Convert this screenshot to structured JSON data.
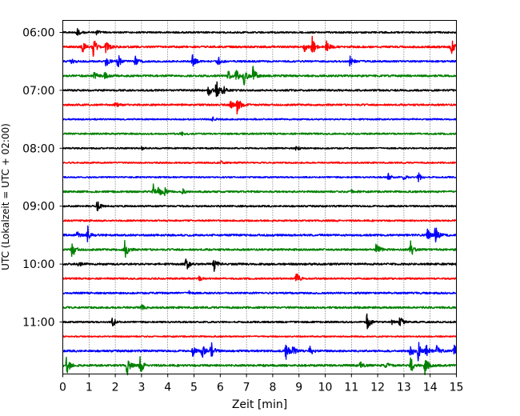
{
  "chart_data": {
    "type": "line",
    "xlabel": "Zeit  [min]",
    "ylabel": "UTC (Lokalzeit = UTC + 02:00)",
    "xlim": [
      0,
      15
    ],
    "x_ticks": [
      0,
      1,
      2,
      3,
      4,
      5,
      6,
      7,
      8,
      9,
      10,
      11,
      12,
      13,
      14,
      15
    ],
    "grid": "vertical-dotted",
    "trace_interval_min": 15,
    "y_time_range": [
      "06:00",
      "11:45"
    ],
    "y_tick_labels": [
      "06:00",
      "07:00",
      "08:00",
      "09:00",
      "10:00",
      "11:00"
    ],
    "colors": [
      "#000000",
      "#ff0000",
      "#0000ff",
      "#008000"
    ],
    "traces": [
      {
        "start": "06:00",
        "color_index": 0,
        "noise": 1.0,
        "events": [
          [
            0.55,
            6
          ],
          [
            1.3,
            3
          ]
        ]
      },
      {
        "start": "06:15",
        "color_index": 1,
        "noise": 1.2,
        "events": [
          [
            0.75,
            7
          ],
          [
            1.15,
            14
          ],
          [
            1.65,
            9
          ],
          [
            9.5,
            13
          ],
          [
            10.05,
            10
          ],
          [
            14.8,
            12
          ],
          [
            9.2,
            6
          ]
        ]
      },
      {
        "start": "06:30",
        "color_index": 2,
        "noise": 1.1,
        "events": [
          [
            0.3,
            5
          ],
          [
            1.65,
            6
          ],
          [
            2.1,
            10
          ],
          [
            2.75,
            7
          ],
          [
            4.95,
            9
          ],
          [
            5.9,
            7
          ],
          [
            10.95,
            7
          ]
        ]
      },
      {
        "start": "06:45",
        "color_index": 3,
        "noise": 1.2,
        "events": [
          [
            1.2,
            6
          ],
          [
            1.6,
            4
          ],
          [
            6.6,
            11
          ],
          [
            6.9,
            13
          ],
          [
            7.25,
            14
          ],
          [
            6.3,
            6
          ]
        ]
      },
      {
        "start": "07:00",
        "color_index": 0,
        "noise": 1.1,
        "events": [
          [
            5.55,
            8
          ],
          [
            5.85,
            14
          ],
          [
            6.1,
            6
          ]
        ]
      },
      {
        "start": "07:15",
        "color_index": 1,
        "noise": 1.1,
        "events": [
          [
            2.0,
            4
          ],
          [
            6.65,
            12
          ],
          [
            6.4,
            5
          ]
        ]
      },
      {
        "start": "07:30",
        "color_index": 2,
        "noise": 0.9,
        "events": [
          [
            5.7,
            3
          ]
        ]
      },
      {
        "start": "07:45",
        "color_index": 3,
        "noise": 1.0,
        "events": [
          [
            4.5,
            3
          ]
        ]
      },
      {
        "start": "08:00",
        "color_index": 0,
        "noise": 0.9,
        "events": [
          [
            3.0,
            2
          ],
          [
            8.9,
            3
          ]
        ]
      },
      {
        "start": "08:15",
        "color_index": 1,
        "noise": 0.9,
        "events": [
          [
            6.0,
            2
          ]
        ]
      },
      {
        "start": "08:30",
        "color_index": 2,
        "noise": 0.9,
        "events": [
          [
            12.4,
            6
          ],
          [
            13.55,
            7
          ],
          [
            13.0,
            3
          ]
        ]
      },
      {
        "start": "08:45",
        "color_index": 3,
        "noise": 1.1,
        "events": [
          [
            3.45,
            9
          ],
          [
            3.65,
            7
          ],
          [
            3.85,
            6
          ],
          [
            4.55,
            4
          ],
          [
            11.0,
            3
          ]
        ]
      },
      {
        "start": "09:00",
        "color_index": 0,
        "noise": 1.0,
        "events": [
          [
            1.3,
            8
          ]
        ]
      },
      {
        "start": "09:15",
        "color_index": 1,
        "noise": 1.0,
        "events": []
      },
      {
        "start": "09:30",
        "color_index": 2,
        "noise": 1.2,
        "events": [
          [
            0.95,
            11
          ],
          [
            13.9,
            7
          ],
          [
            14.2,
            12
          ],
          [
            0.55,
            4
          ]
        ]
      },
      {
        "start": "09:45",
        "color_index": 3,
        "noise": 1.2,
        "events": [
          [
            0.35,
            11
          ],
          [
            2.35,
            14
          ],
          [
            11.95,
            11
          ],
          [
            13.25,
            11
          ]
        ]
      },
      {
        "start": "10:00",
        "color_index": 0,
        "noise": 1.2,
        "events": [
          [
            4.7,
            9
          ],
          [
            5.75,
            10
          ],
          [
            0.6,
            3
          ]
        ]
      },
      {
        "start": "10:15",
        "color_index": 1,
        "noise": 1.0,
        "events": [
          [
            8.9,
            8
          ],
          [
            5.2,
            3
          ]
        ]
      },
      {
        "start": "10:30",
        "color_index": 2,
        "noise": 1.1,
        "events": [
          [
            4.8,
            3
          ]
        ]
      },
      {
        "start": "10:45",
        "color_index": 3,
        "noise": 1.2,
        "events": [
          [
            3.0,
            3
          ]
        ]
      },
      {
        "start": "11:00",
        "color_index": 0,
        "noise": 1.0,
        "events": [
          [
            1.9,
            6
          ],
          [
            11.6,
            12
          ],
          [
            12.85,
            7
          ],
          [
            12.55,
            4
          ]
        ]
      },
      {
        "start": "11:15",
        "color_index": 1,
        "noise": 0.8,
        "events": []
      },
      {
        "start": "11:30",
        "color_index": 2,
        "noise": 1.2,
        "events": [
          [
            4.95,
            6
          ],
          [
            5.3,
            10
          ],
          [
            5.65,
            12
          ],
          [
            8.5,
            11
          ],
          [
            8.75,
            9
          ],
          [
            9.4,
            8
          ],
          [
            13.25,
            9
          ],
          [
            13.55,
            13
          ],
          [
            13.85,
            9
          ],
          [
            14.25,
            7
          ],
          [
            14.9,
            10
          ]
        ]
      },
      {
        "start": "11:45",
        "color_index": 3,
        "noise": 1.3,
        "events": [
          [
            0.15,
            12
          ],
          [
            2.45,
            13
          ],
          [
            2.95,
            11
          ],
          [
            11.3,
            6
          ],
          [
            13.25,
            11
          ],
          [
            13.8,
            13
          ],
          [
            12.3,
            4
          ]
        ]
      }
    ]
  }
}
